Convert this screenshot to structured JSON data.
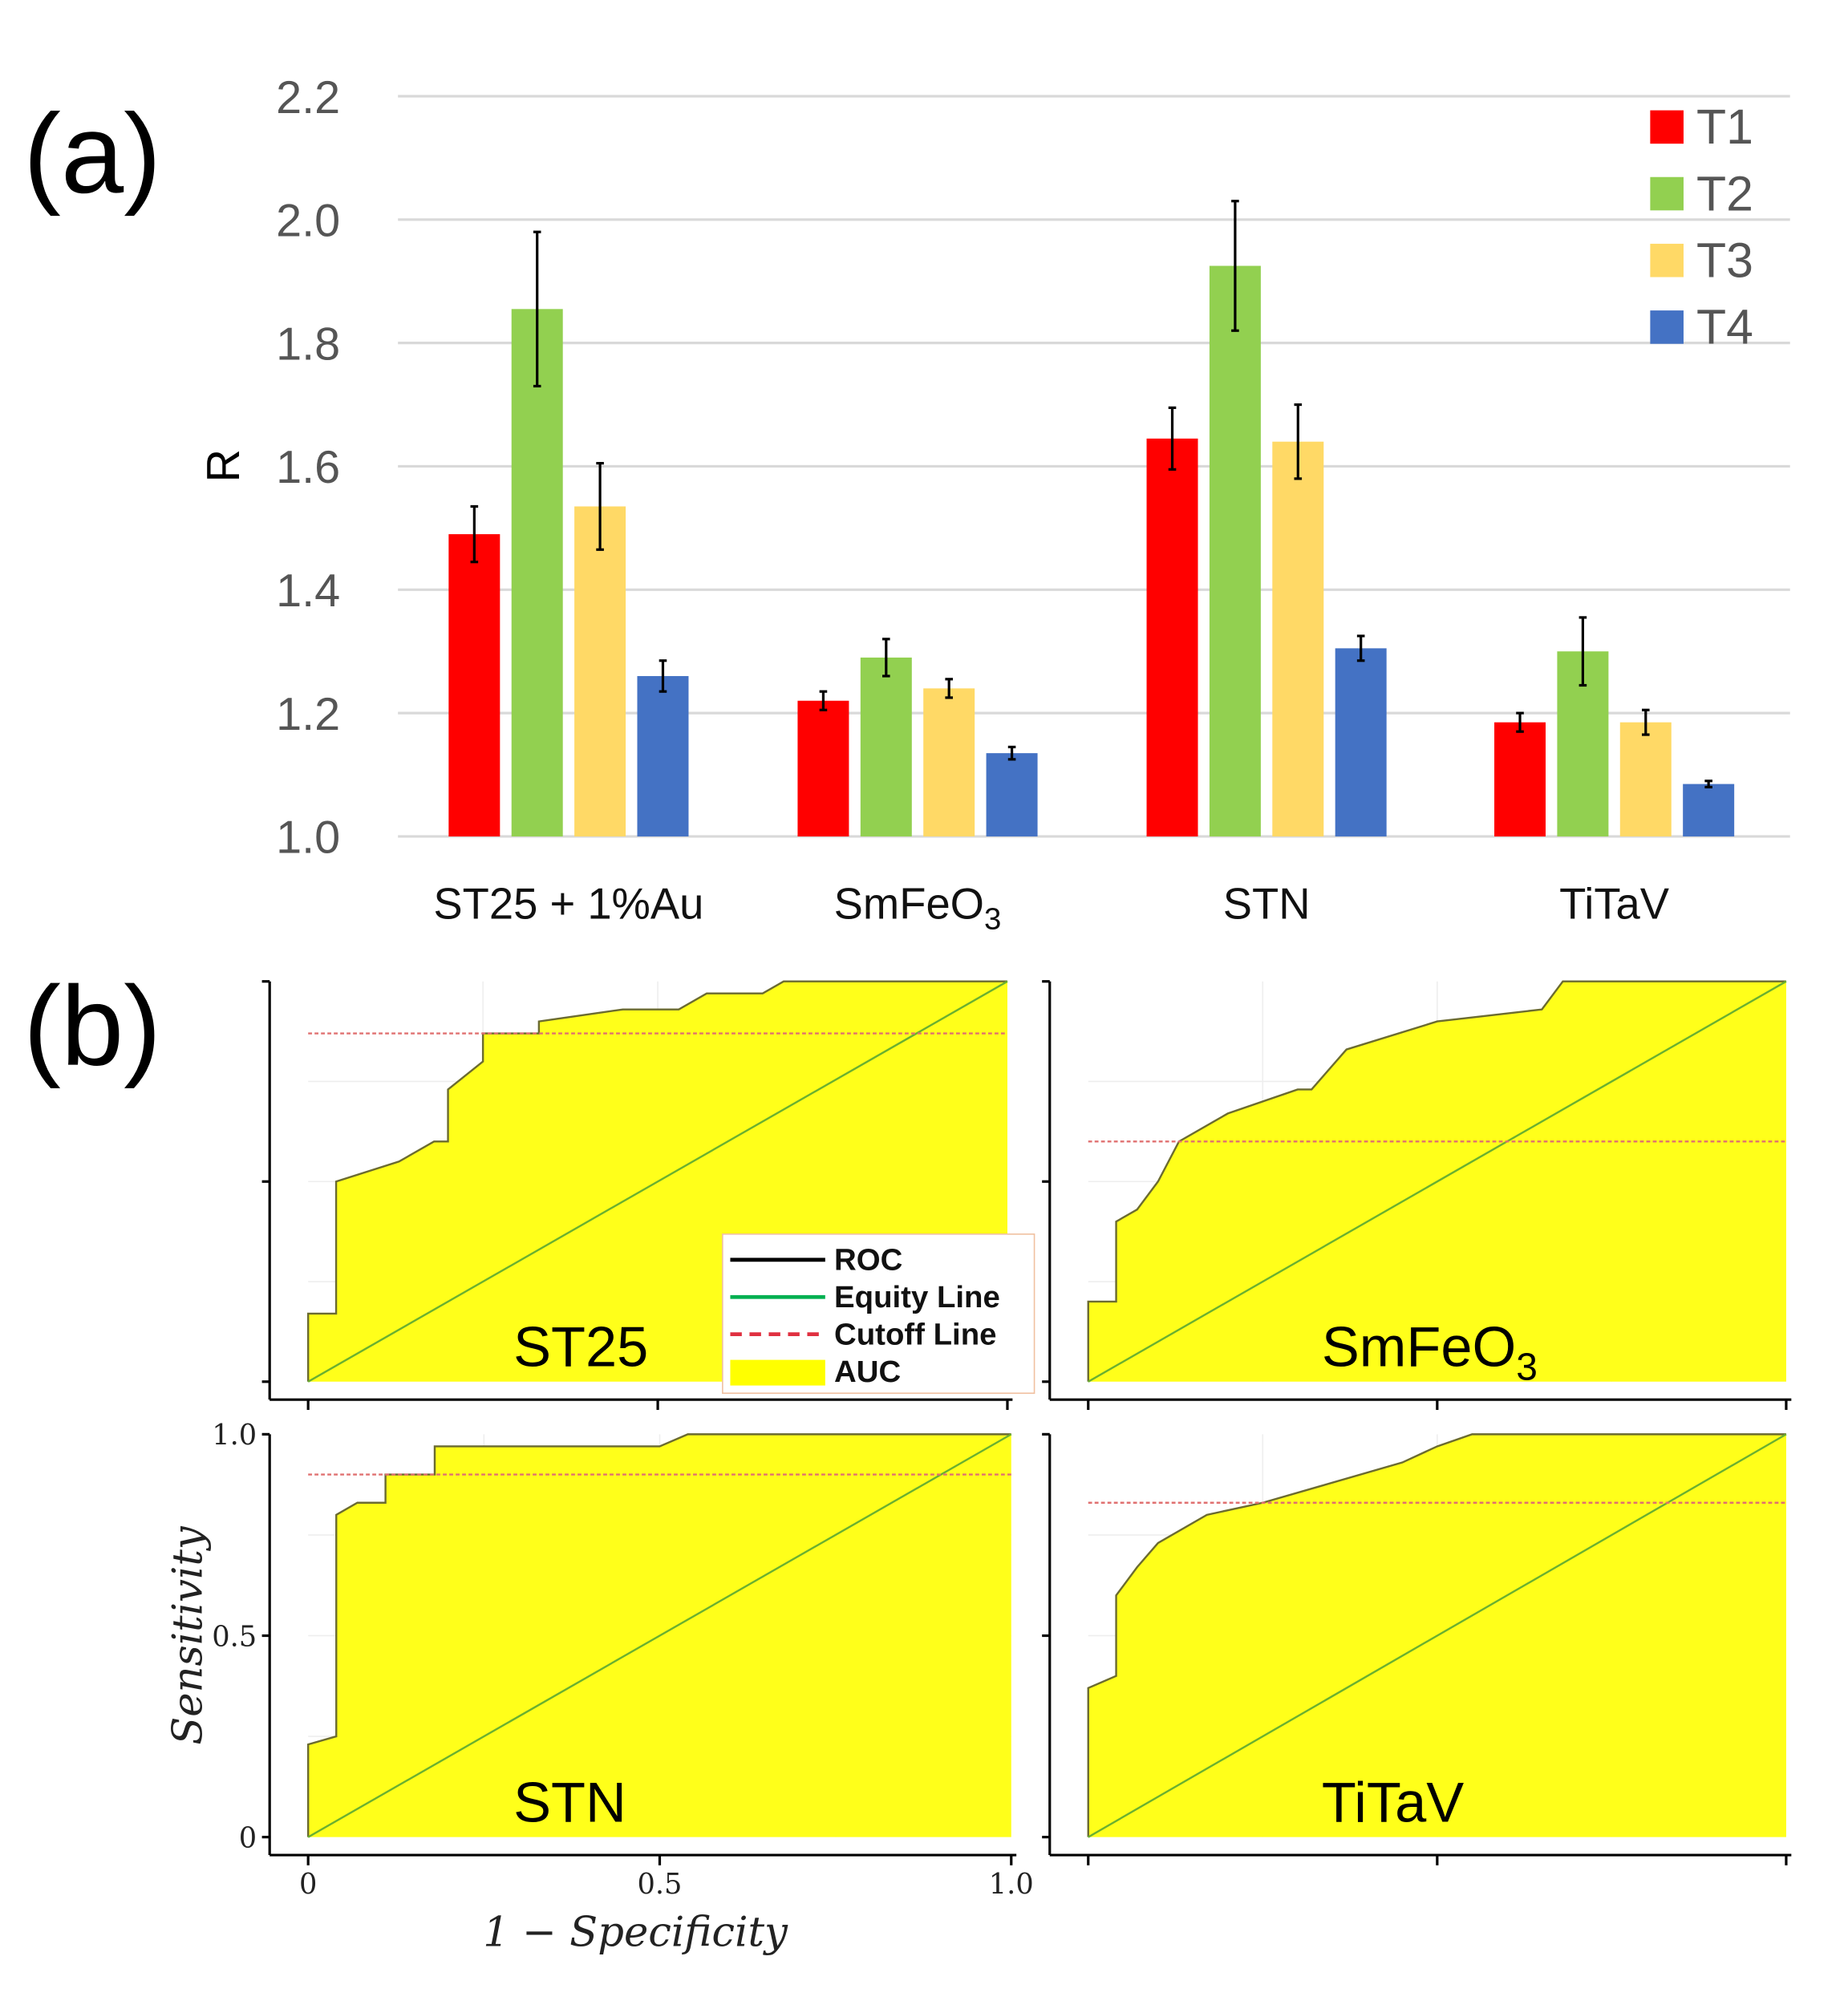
{
  "chart_data": [
    {
      "type": "bar",
      "panel_label": "(a)",
      "ylabel": "R",
      "ylim": [
        1.0,
        2.2
      ],
      "yticks": [
        "1.0",
        "1.2",
        "1.4",
        "1.6",
        "1.8",
        "2.0",
        "2.2"
      ],
      "categories": [
        "ST25 + 1%Au",
        "SmFeO",
        "STN",
        "TiTaV"
      ],
      "category_subscripts": [
        "",
        "3",
        "",
        ""
      ],
      "legend_position": "top-right",
      "grid": true,
      "series": [
        {
          "name": "T1",
          "color": "#ff0000",
          "values": [
            1.49,
            1.22,
            1.645,
            1.185
          ],
          "errors": [
            0.045,
            0.015,
            0.05,
            0.015
          ]
        },
        {
          "name": "T2",
          "color": "#92d050",
          "values": [
            1.855,
            1.29,
            1.925,
            1.3
          ],
          "errors": [
            0.125,
            0.03,
            0.105,
            0.055
          ]
        },
        {
          "name": "T3",
          "color": "#ffd966",
          "values": [
            1.535,
            1.24,
            1.64,
            1.185
          ],
          "errors": [
            0.07,
            0.015,
            0.06,
            0.02
          ]
        },
        {
          "name": "T4",
          "color": "#4472c4",
          "values": [
            1.26,
            1.135,
            1.305,
            1.085
          ],
          "errors": [
            0.025,
            0.01,
            0.02,
            0.005
          ]
        }
      ]
    },
    {
      "type": "area",
      "panel_label": "(b)",
      "xlabel": "1 − Specificity",
      "ylabel": "Sensitivity",
      "xticks": [
        "0",
        "0.5",
        "1.0"
      ],
      "yticks": [
        "0",
        "0.5",
        "1.0"
      ],
      "xlim": [
        0,
        1
      ],
      "ylim": [
        0,
        1
      ],
      "legend": [
        {
          "name": "ROC",
          "color": "#000000"
        },
        {
          "name": "Equity Line",
          "color": "#00b050"
        },
        {
          "name": "Cutoff Line",
          "color": "#e03040"
        },
        {
          "name": "AUC",
          "color": "#ffff00"
        }
      ],
      "panels": [
        {
          "title": "ST25",
          "subscript": "",
          "cutoff": 0.87,
          "roc": [
            [
              0,
              0
            ],
            [
              0,
              0.17
            ],
            [
              0.04,
              0.17
            ],
            [
              0.04,
              0.5
            ],
            [
              0.13,
              0.55
            ],
            [
              0.18,
              0.6
            ],
            [
              0.2,
              0.6
            ],
            [
              0.2,
              0.73
            ],
            [
              0.25,
              0.8
            ],
            [
              0.25,
              0.87
            ],
            [
              0.33,
              0.87
            ],
            [
              0.33,
              0.9
            ],
            [
              0.45,
              0.93
            ],
            [
              0.53,
              0.93
            ],
            [
              0.57,
              0.97
            ],
            [
              0.65,
              0.97
            ],
            [
              0.68,
              1
            ],
            [
              1,
              1
            ]
          ]
        },
        {
          "title": "SmFeO",
          "subscript": "3",
          "cutoff": 0.6,
          "roc": [
            [
              0,
              0
            ],
            [
              0,
              0.2
            ],
            [
              0.04,
              0.2
            ],
            [
              0.04,
              0.4
            ],
            [
              0.07,
              0.43
            ],
            [
              0.1,
              0.5
            ],
            [
              0.13,
              0.6
            ],
            [
              0.2,
              0.67
            ],
            [
              0.3,
              0.73
            ],
            [
              0.32,
              0.73
            ],
            [
              0.37,
              0.83
            ],
            [
              0.5,
              0.9
            ],
            [
              0.65,
              0.93
            ],
            [
              0.68,
              1
            ],
            [
              1,
              1
            ]
          ]
        },
        {
          "title": "STN",
          "subscript": "",
          "cutoff": 0.9,
          "roc": [
            [
              0,
              0
            ],
            [
              0,
              0.23
            ],
            [
              0.04,
              0.25
            ],
            [
              0.04,
              0.8
            ],
            [
              0.07,
              0.83
            ],
            [
              0.11,
              0.83
            ],
            [
              0.11,
              0.9
            ],
            [
              0.18,
              0.9
            ],
            [
              0.18,
              0.97
            ],
            [
              0.5,
              0.97
            ],
            [
              0.54,
              1
            ],
            [
              1,
              1
            ]
          ]
        },
        {
          "title": "TiTaV",
          "subscript": "",
          "cutoff": 0.83,
          "roc": [
            [
              0,
              0
            ],
            [
              0,
              0.37
            ],
            [
              0.04,
              0.4
            ],
            [
              0.04,
              0.6
            ],
            [
              0.07,
              0.67
            ],
            [
              0.1,
              0.73
            ],
            [
              0.17,
              0.8
            ],
            [
              0.25,
              0.83
            ],
            [
              0.33,
              0.87
            ],
            [
              0.45,
              0.93
            ],
            [
              0.5,
              0.97
            ],
            [
              0.55,
              1
            ],
            [
              1,
              1
            ]
          ]
        }
      ]
    }
  ]
}
